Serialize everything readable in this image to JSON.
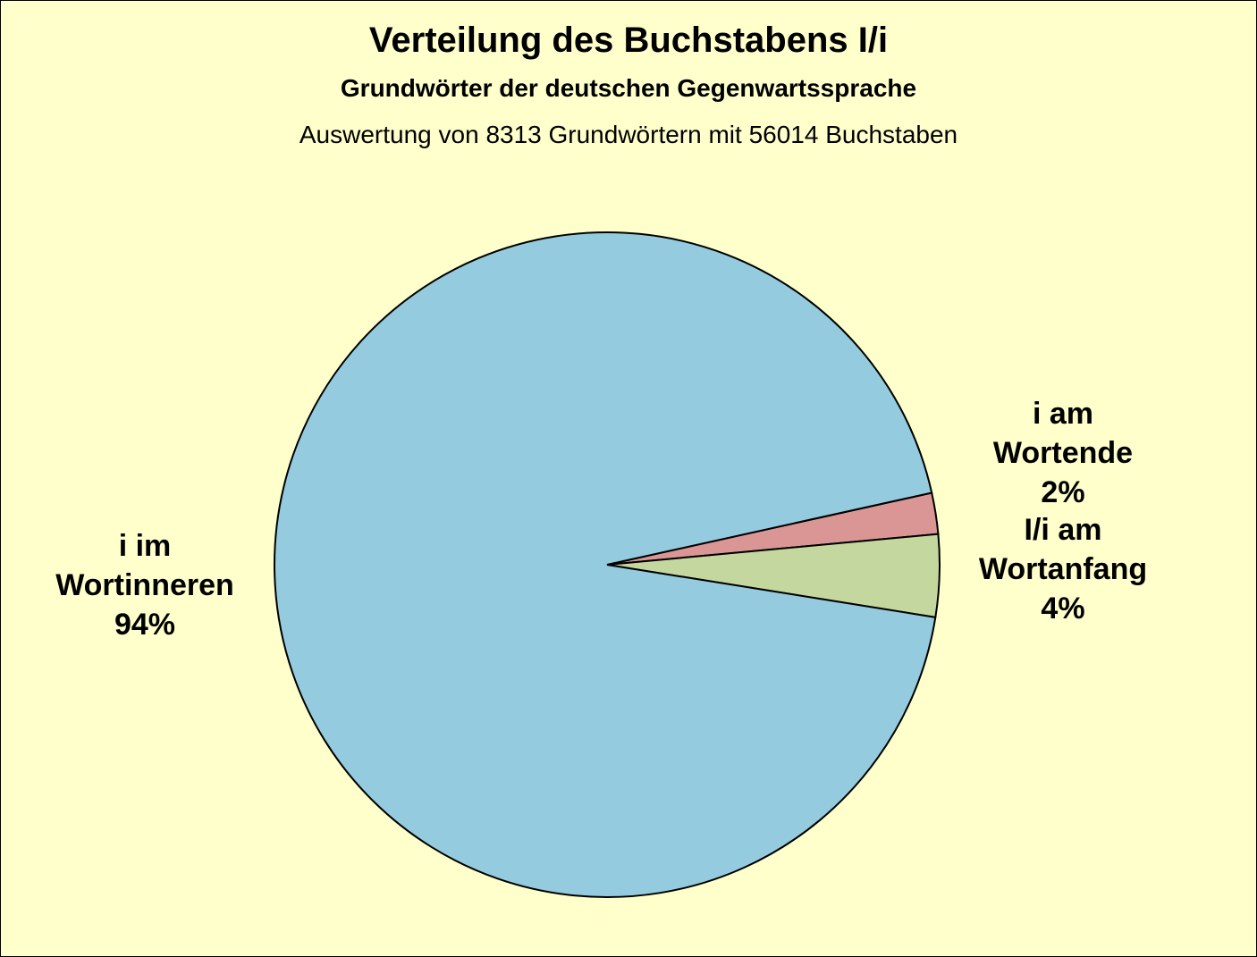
{
  "chart_data": {
    "type": "pie",
    "title": "Verteilung des Buchstabens I/i",
    "subtitle": "Grundwörter der deutschen Gegenwartssprache",
    "note": "Auswertung von 8313 Grundwörtern mit 56014 Buchstaben",
    "categories": [
      "i am Wortende",
      "I/i am Wortanfang",
      "i im Wortinneren"
    ],
    "values": [
      2,
      4,
      94
    ],
    "value_labels": [
      "2%",
      "4%",
      "94%"
    ],
    "colors": [
      "#d99694",
      "#c4d79f",
      "#94cbdf"
    ]
  }
}
